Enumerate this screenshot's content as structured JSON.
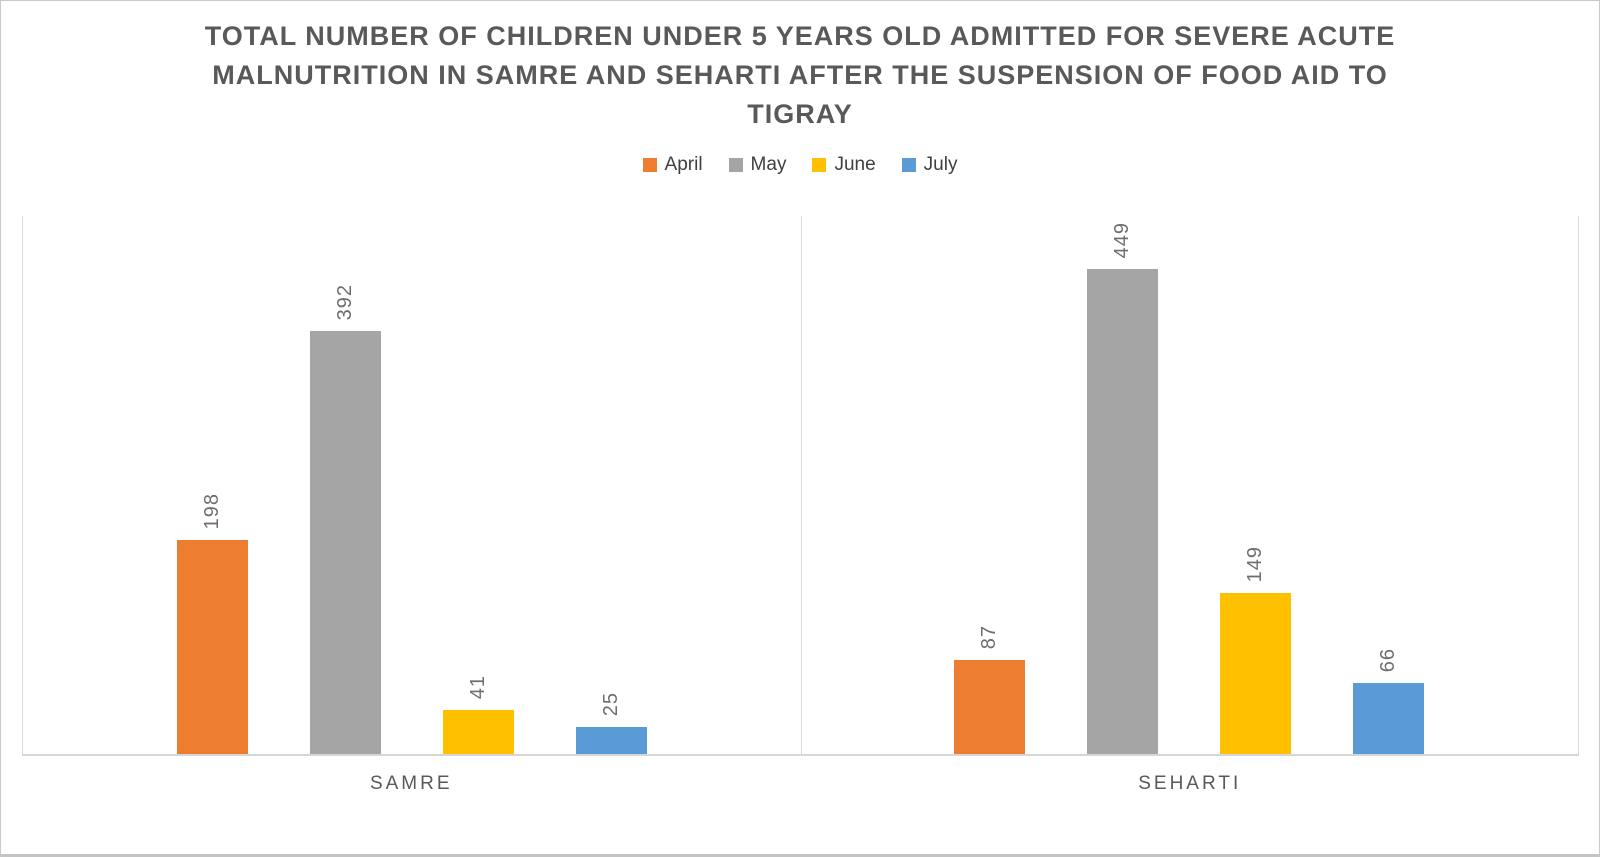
{
  "title": "TOTAL NUMBER OF CHILDREN UNDER 5 YEARS OLD ADMITTED FOR SEVERE ACUTE MALNUTRITION IN SAMRE AND SEHARTI AFTER THE SUSPENSION OF FOOD AID TO TIGRAY",
  "chart_data": {
    "type": "bar",
    "title": "TOTAL NUMBER OF CHILDREN UNDER 5 YEARS OLD ADMITTED FOR SEVERE ACUTE MALNUTRITION IN SAMRE AND SEHARTI AFTER THE SUSPENSION OF FOOD AID TO TIGRAY",
    "categories": [
      "SAMRE",
      "SEHARTI"
    ],
    "series": [
      {
        "name": "April",
        "color": "#ED7D31",
        "values": [
          198,
          87
        ]
      },
      {
        "name": "May",
        "color": "#A5A5A5",
        "values": [
          392,
          449
        ]
      },
      {
        "name": "June",
        "color": "#FFC000",
        "values": [
          41,
          149
        ]
      },
      {
        "name": "July",
        "color": "#5B9BD5",
        "values": [
          25,
          66
        ]
      }
    ],
    "xlabel": "",
    "ylabel": "",
    "ylim": [
      0,
      500
    ],
    "grid": false,
    "y_axis_visible": false,
    "legend_position": "top",
    "data_labels": "rotated-90-ccw"
  },
  "colors": {
    "title_text": "#595959",
    "data_label_text": "#6e6e6e",
    "category_label_text": "#595959",
    "axis_line": "#d9d9d9",
    "background": "#ffffff"
  }
}
